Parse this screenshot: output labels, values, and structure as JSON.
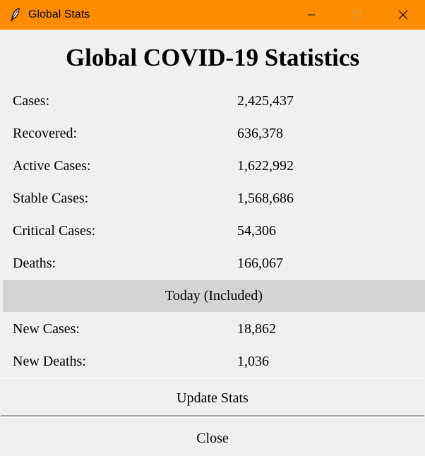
{
  "window": {
    "title": "Global Stats",
    "icon": "feather-icon",
    "titlebar_color": "#ff8c00"
  },
  "heading": "Global COVID-19 Statistics",
  "stats": [
    {
      "label": "Cases:",
      "value": "2,425,437"
    },
    {
      "label": "Recovered:",
      "value": "636,378"
    },
    {
      "label": "Active Cases:",
      "value": "1,622,992"
    },
    {
      "label": "Stable Cases:",
      "value": "1,568,686"
    },
    {
      "label": "Critical Cases:",
      "value": "54,306"
    },
    {
      "label": "Deaths:",
      "value": "166,067"
    }
  ],
  "today": {
    "header": "Today (Included)",
    "stats": [
      {
        "label": "New Cases:",
        "value": "18,862"
      },
      {
        "label": "New Deaths:",
        "value": "1,036"
      }
    ]
  },
  "buttons": {
    "update_label": "Update Stats",
    "close_label": "Close"
  }
}
